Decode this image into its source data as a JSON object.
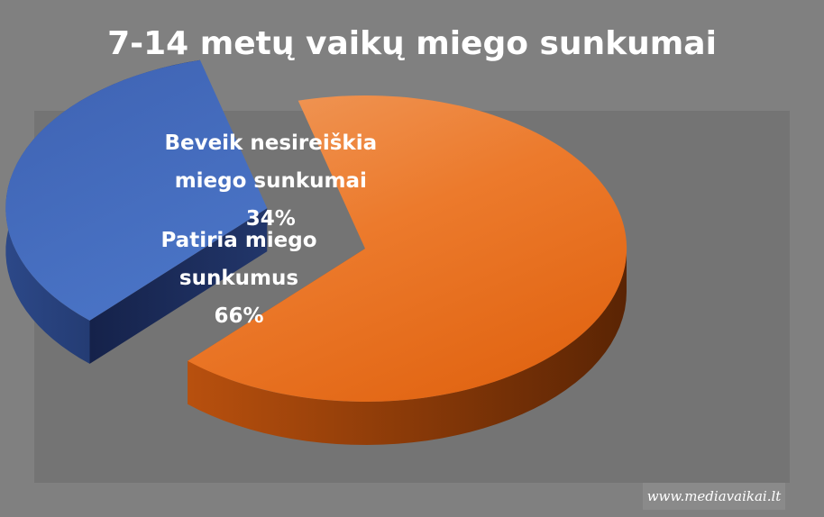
{
  "chart_data": {
    "type": "pie",
    "title": "7-14 metų vaikų miego sunkumai",
    "slices": [
      {
        "label": [
          "Patiria miego",
          "sunkumus"
        ],
        "percent_label": "66%",
        "value": 66,
        "color": "#e8701a"
      },
      {
        "label": [
          "Beveik nesireiškia",
          "miego sunkumai"
        ],
        "percent_label": "34%",
        "value": 34,
        "color": "#4169b8"
      }
    ]
  },
  "watermark": "www.mediavaikai.lt"
}
